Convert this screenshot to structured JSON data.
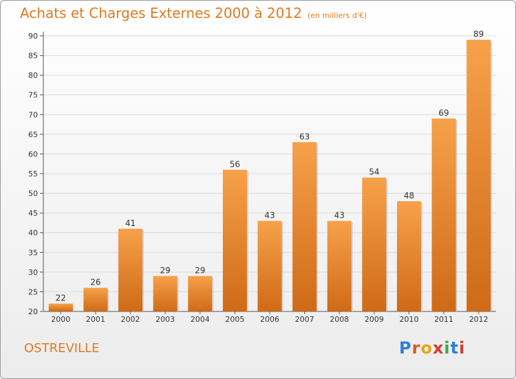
{
  "header": {
    "title": "Achats et Charges Externes 2000 à 2012",
    "subtitle": "(en milliers d'€)"
  },
  "footer": {
    "commune": "OSTREVILLE",
    "logo_text": "Proxiti",
    "logo_colors": [
      "#2e7fd6",
      "#e05a1a",
      "#e2a81b",
      "#d43a2a",
      "#3aa844",
      "#2e7fd6",
      "#d43a2a"
    ]
  },
  "colors": {
    "bar_top": "#f7a14a",
    "bar_bottom": "#cf6a17",
    "accent": "#e07a20",
    "grid": "#d9d9d9",
    "axis_text": "#333333"
  },
  "chart_data": {
    "type": "bar",
    "categories": [
      "2000",
      "2001",
      "2002",
      "2003",
      "2004",
      "2005",
      "2006",
      "2007",
      "2008",
      "2009",
      "2010",
      "2011",
      "2012"
    ],
    "values": [
      22,
      26,
      41,
      29,
      29,
      56,
      43,
      63,
      43,
      54,
      48,
      69,
      89
    ],
    "ylim": [
      20,
      90
    ],
    "yticks": [
      20,
      25,
      30,
      35,
      40,
      45,
      50,
      55,
      60,
      65,
      70,
      75,
      80,
      85,
      90
    ],
    "grid": "horizontal",
    "data_labels": true
  }
}
